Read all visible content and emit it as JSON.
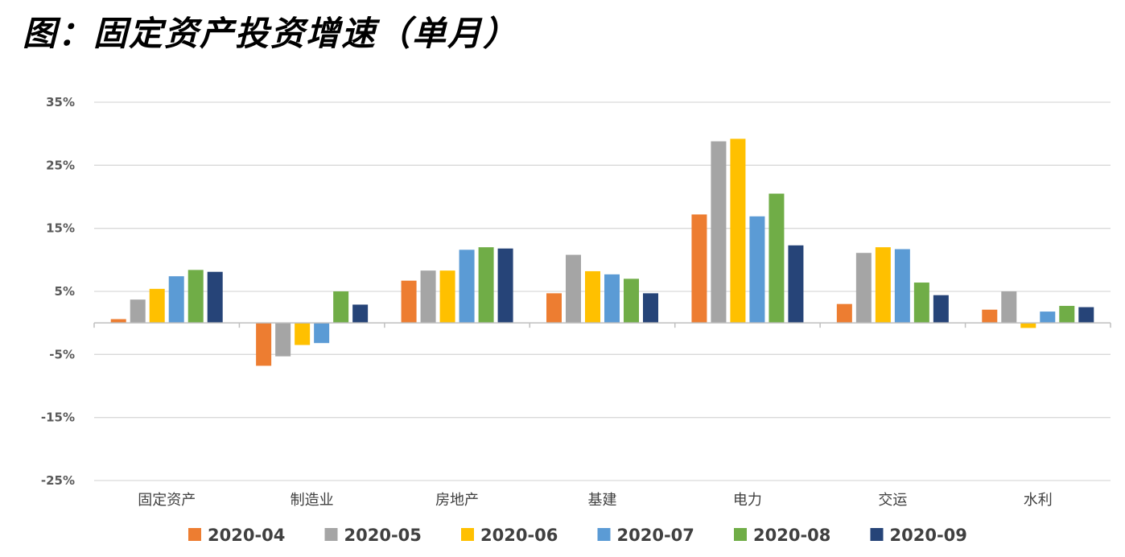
{
  "title": "图：固定资产投资增速（单月）",
  "chart_data": {
    "type": "bar",
    "categories": [
      "固定资产",
      "制造业",
      "房地产",
      "基建",
      "电力",
      "交运",
      "水利"
    ],
    "series": [
      {
        "name": "2020-04",
        "color": "#ED7D31",
        "values": [
          0.6,
          -6.8,
          6.7,
          4.7,
          17.2,
          3.0,
          2.1
        ]
      },
      {
        "name": "2020-05",
        "color": "#A5A5A5",
        "values": [
          3.7,
          -5.3,
          8.3,
          10.8,
          28.8,
          11.1,
          5.0
        ]
      },
      {
        "name": "2020-06",
        "color": "#FFC000",
        "values": [
          5.4,
          -3.5,
          8.3,
          8.2,
          29.2,
          12.0,
          -0.8
        ]
      },
      {
        "name": "2020-07",
        "color": "#5B9BD5",
        "values": [
          7.4,
          -3.2,
          11.6,
          7.7,
          16.9,
          11.7,
          1.8
        ]
      },
      {
        "name": "2020-08",
        "color": "#70AD47",
        "values": [
          8.4,
          5.0,
          12.0,
          7.0,
          20.5,
          6.4,
          2.7
        ]
      },
      {
        "name": "2020-09",
        "color": "#264478",
        "values": [
          8.1,
          2.9,
          11.8,
          4.7,
          12.3,
          4.4,
          2.5
        ]
      }
    ],
    "y_ticks": [
      "35%",
      "25%",
      "15%",
      "5%",
      "-5%",
      "-15%",
      "-25%"
    ],
    "y_tick_values": [
      35,
      25,
      15,
      5,
      -5,
      -15,
      -25
    ],
    "ylim": [
      -25,
      35
    ],
    "grid": true,
    "legend_position": "bottom"
  }
}
